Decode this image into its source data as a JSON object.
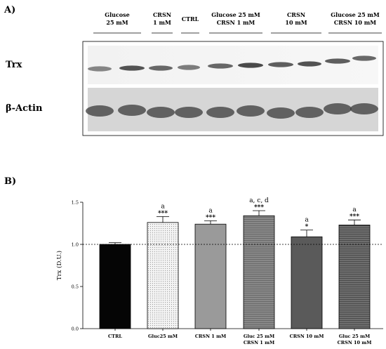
{
  "panel_a": {
    "label": "A)",
    "lanes": [
      {
        "label_lines": [
          "Glucose",
          "25 mM"
        ]
      },
      {
        "label_lines": [
          "CRSN",
          "1 mM"
        ]
      },
      {
        "label_lines": [
          "CTRL"
        ]
      },
      {
        "label_lines": [
          "Glucose 25 mM",
          "CRSN 1 mM"
        ]
      },
      {
        "label_lines": [
          "CRSN",
          "10 mM"
        ]
      },
      {
        "label_lines": [
          "Glucose 25 mM",
          "CRSN 10 mM"
        ]
      }
    ],
    "rows": [
      {
        "label": "Trx"
      },
      {
        "label": "β-Actin"
      }
    ]
  },
  "panel_b": {
    "label": "B)"
  },
  "chart_data": {
    "type": "bar",
    "categories": [
      [
        "CTRL"
      ],
      [
        "Gluc25 mM"
      ],
      [
        "CRSN 1 mM"
      ],
      [
        "Gluc 25 mM",
        "CRSN 1 mM"
      ],
      [
        "CRSN 10 mM"
      ],
      [
        "Gluc 25 mM",
        "CRSN 10 mM"
      ]
    ],
    "values": [
      1.0,
      1.26,
      1.24,
      1.34,
      1.09,
      1.23
    ],
    "errors": [
      0.02,
      0.07,
      0.04,
      0.06,
      0.08,
      0.06
    ],
    "significance_letters": [
      "",
      "a",
      "a",
      "a, c, d",
      "a",
      "a"
    ],
    "significance_stars": [
      "",
      "***",
      "***",
      "***",
      "*",
      "***"
    ],
    "ylabel": "Trx (D.U.)",
    "yticks": [
      "0.0",
      "0.5",
      "1.0",
      "1.5"
    ],
    "ylim": [
      0,
      1.5
    ],
    "reference_line": 1.0,
    "bar_colors": [
      "#050505",
      "#eeeeee",
      "#9a9a9a",
      "#8e8e8e",
      "#5a5a5a",
      "#6e6e6e"
    ],
    "bar_patterns": [
      "solid",
      "dots",
      "solid",
      "hatch",
      "solid",
      "hatch"
    ]
  }
}
